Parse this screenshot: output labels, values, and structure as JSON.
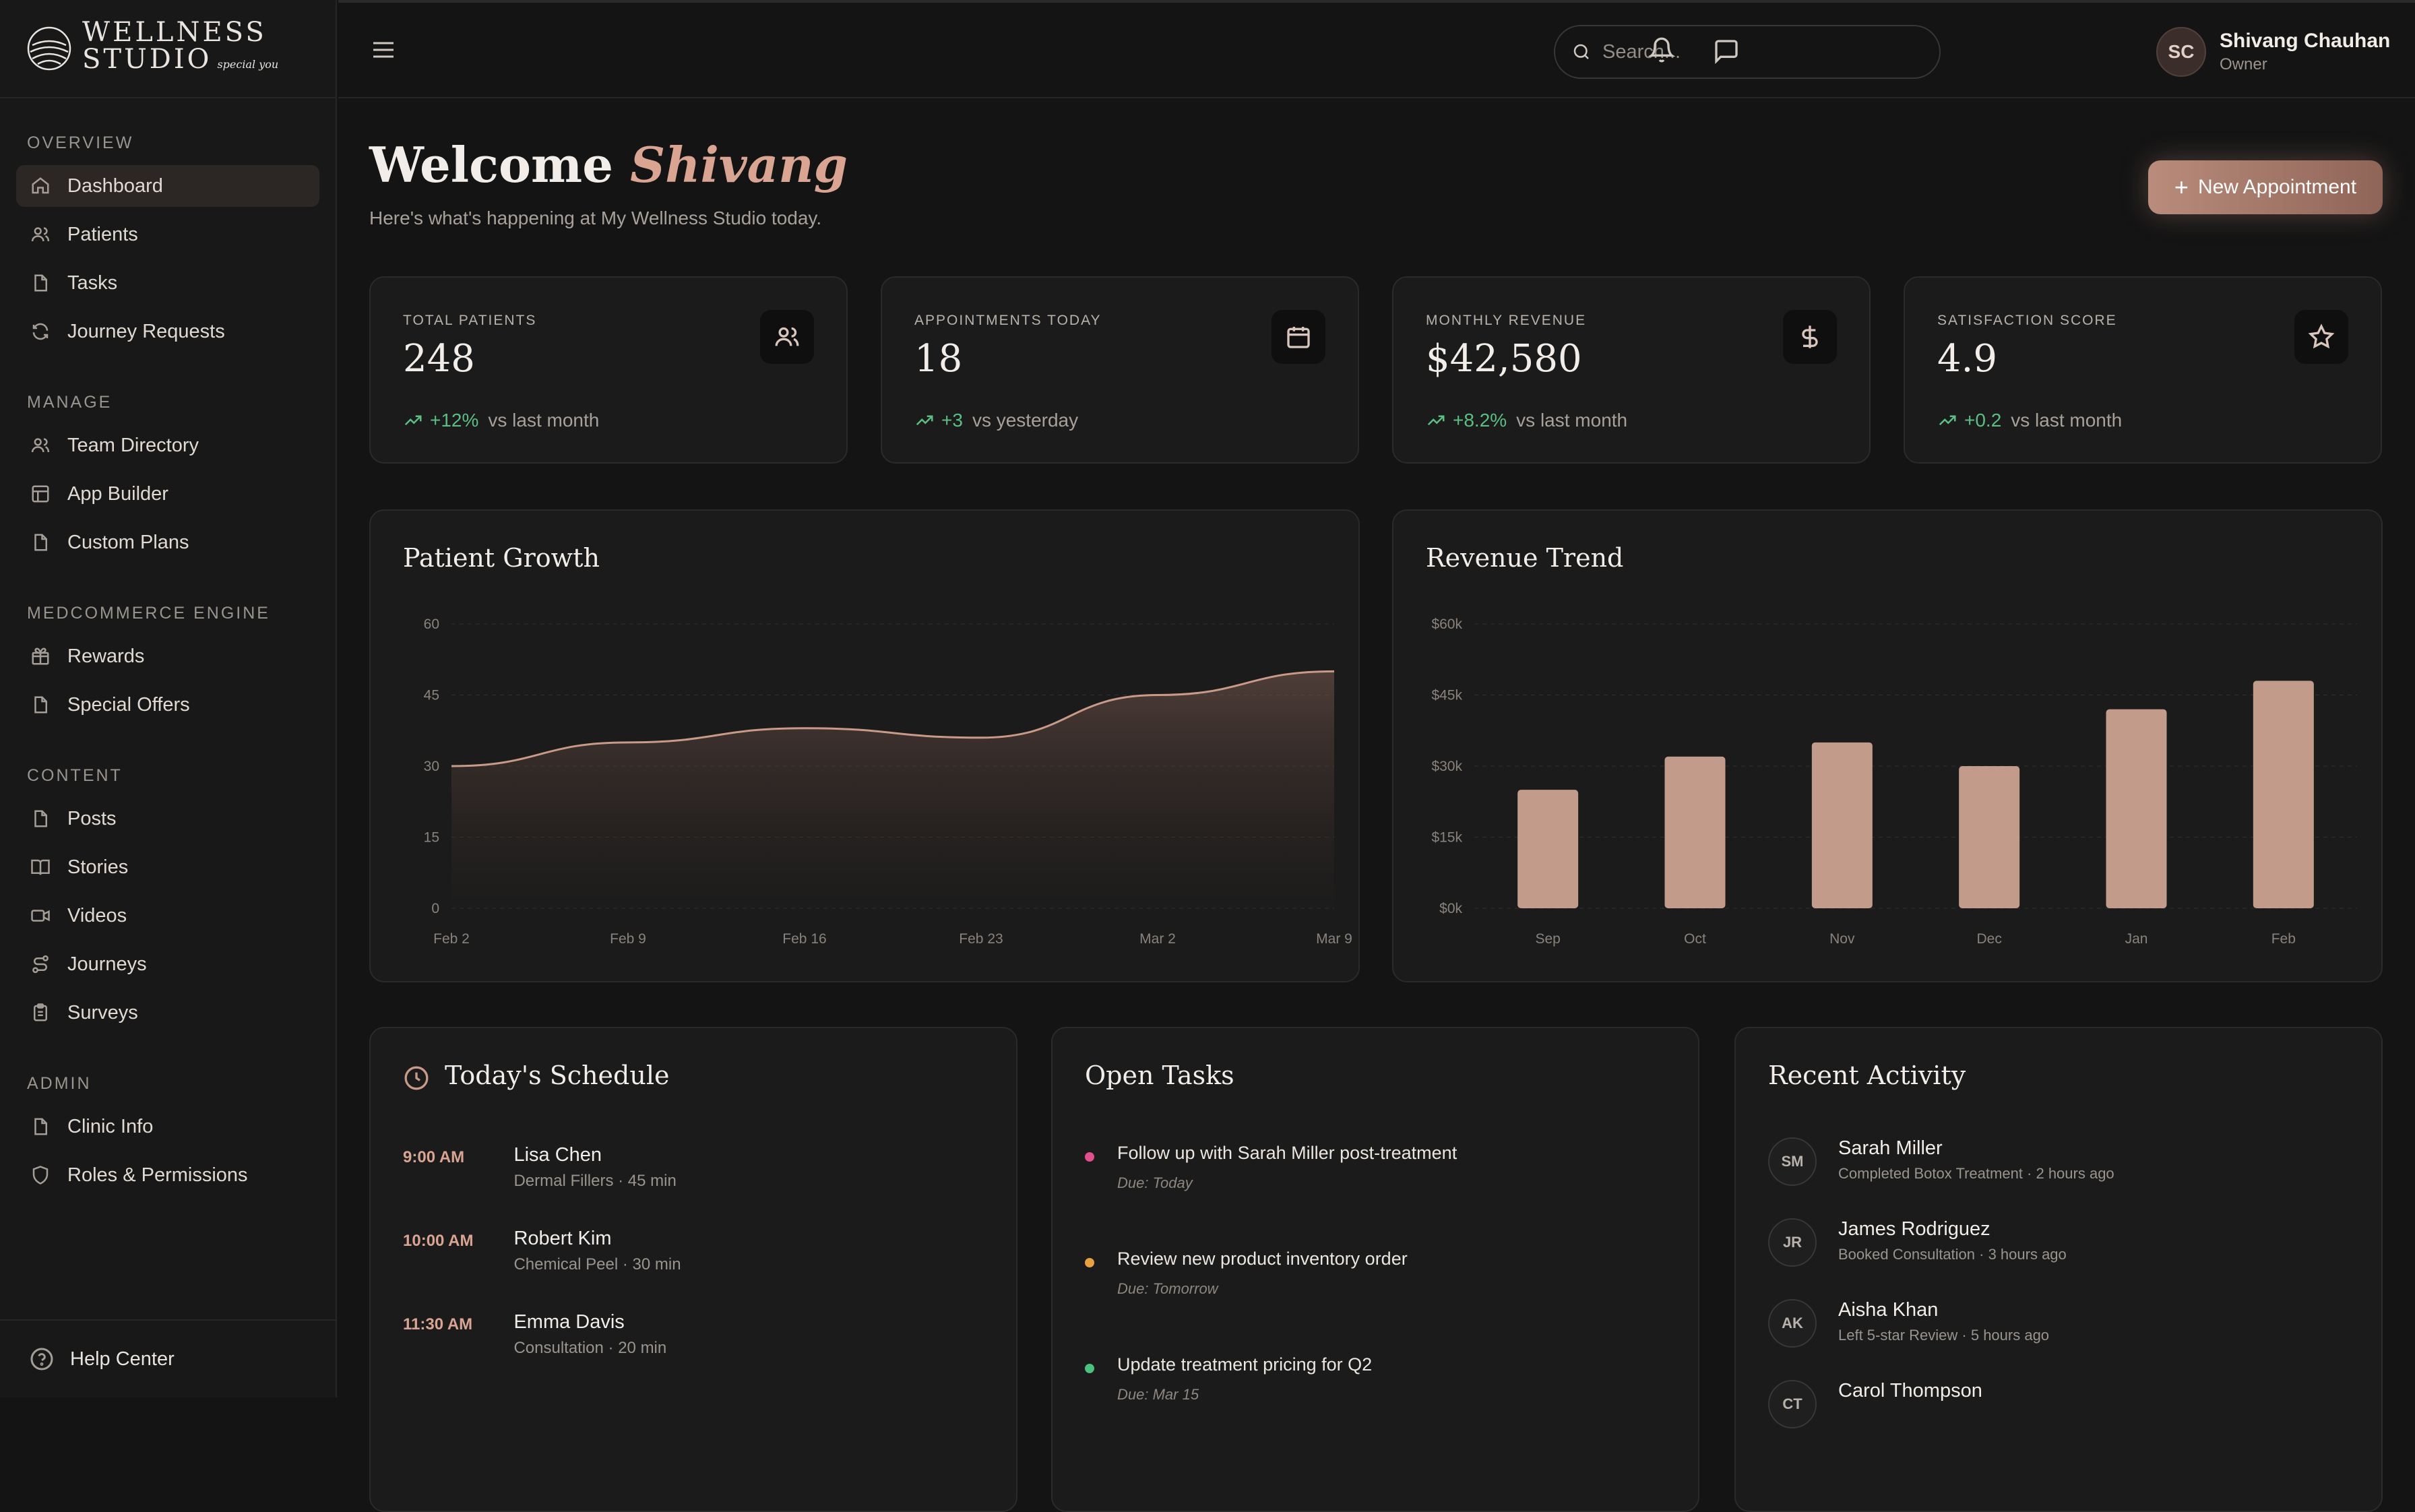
{
  "brand": {
    "line1": "WELLNESS",
    "line2": "STUDIO",
    "tagline": "special you"
  },
  "sidebar": {
    "sections": [
      {
        "heading": "OVERVIEW",
        "items": [
          {
            "label": "Dashboard",
            "icon": "home-icon",
            "active": true
          },
          {
            "label": "Patients",
            "icon": "users-icon"
          },
          {
            "label": "Tasks",
            "icon": "file-icon"
          },
          {
            "label": "Journey Requests",
            "icon": "refresh-icon"
          }
        ]
      },
      {
        "heading": "MANAGE",
        "items": [
          {
            "label": "Team Directory",
            "icon": "users-icon"
          },
          {
            "label": "App Builder",
            "icon": "layout-icon"
          },
          {
            "label": "Custom Plans",
            "icon": "file-icon"
          }
        ]
      },
      {
        "heading": "MEDCOMMERCE ENGINE",
        "items": [
          {
            "label": "Rewards",
            "icon": "gift-icon"
          },
          {
            "label": "Special Offers",
            "icon": "file-icon"
          }
        ]
      },
      {
        "heading": "CONTENT",
        "items": [
          {
            "label": "Posts",
            "icon": "file-icon"
          },
          {
            "label": "Stories",
            "icon": "book-icon"
          },
          {
            "label": "Videos",
            "icon": "video-icon"
          },
          {
            "label": "Journeys",
            "icon": "route-icon"
          },
          {
            "label": "Surveys",
            "icon": "clipboard-icon"
          }
        ]
      },
      {
        "heading": "ADMIN",
        "items": [
          {
            "label": "Clinic Info",
            "icon": "file-icon"
          },
          {
            "label": "Roles & Permissions",
            "icon": "shield-icon"
          }
        ]
      }
    ],
    "help": "Help Center"
  },
  "topbar": {
    "search_placeholder": "Search...",
    "user": {
      "initials": "SC",
      "name": "Shivang Chauhan",
      "role": "Owner"
    }
  },
  "header": {
    "welcome": "Welcome",
    "name": "Shivang",
    "subtitle": "Here's what's happening at My Wellness Studio today.",
    "new_button": "New Appointment"
  },
  "stats": [
    {
      "label": "TOTAL PATIENTS",
      "value": "248",
      "delta": "+12%",
      "compare": "vs last month",
      "icon": "users-icon"
    },
    {
      "label": "APPOINTMENTS TODAY",
      "value": "18",
      "delta": "+3",
      "compare": "vs yesterday",
      "icon": "calendar-icon"
    },
    {
      "label": "MONTHLY REVENUE",
      "value": "$42,580",
      "delta": "+8.2%",
      "compare": "vs last month",
      "icon": "dollar-icon"
    },
    {
      "label": "SATISFACTION SCORE",
      "value": "4.9",
      "delta": "+0.2",
      "compare": "vs last month",
      "icon": "star-icon"
    }
  ],
  "chart_data": [
    {
      "type": "area",
      "title": "Patient Growth",
      "x": [
        "Feb 2",
        "Feb 9",
        "Feb 16",
        "Feb 23",
        "Mar 2",
        "Mar 9"
      ],
      "yticks": [
        "0",
        "15",
        "30",
        "45",
        "60"
      ],
      "ylim": [
        0,
        60
      ],
      "series": [
        {
          "values": [
            30,
            35,
            38,
            36,
            45,
            50
          ]
        }
      ],
      "color": "#c99a88",
      "grid": true
    },
    {
      "type": "bar",
      "title": "Revenue Trend",
      "categories": [
        "Sep",
        "Oct",
        "Nov",
        "Dec",
        "Jan",
        "Feb"
      ],
      "yticks": [
        "$0k",
        "$15k",
        "$30k",
        "$45k",
        "$60k"
      ],
      "ylim": [
        0,
        60
      ],
      "values": [
        25,
        32,
        35,
        30,
        42,
        48
      ],
      "color": "#c39b8b",
      "grid": true
    }
  ],
  "schedule": {
    "title": "Today's Schedule",
    "items": [
      {
        "time": "9:00 AM",
        "name": "Lisa Chen",
        "detail": "Dermal Fillers · 45 min"
      },
      {
        "time": "10:00 AM",
        "name": "Robert Kim",
        "detail": "Chemical Peel · 30 min"
      },
      {
        "time": "11:30 AM",
        "name": "Emma Davis",
        "detail": "Consultation · 20 min"
      }
    ]
  },
  "tasks": {
    "title": "Open Tasks",
    "items": [
      {
        "title": "Follow up with Sarah Miller post-treatment",
        "due": "Due: Today",
        "color": "#e0508c"
      },
      {
        "title": "Review new product inventory order",
        "due": "Due: Tomorrow",
        "color": "#e8a040"
      },
      {
        "title": "Update treatment pricing for Q2",
        "due": "Due: Mar 15",
        "color": "#4fbf7f"
      }
    ]
  },
  "activity": {
    "title": "Recent Activity",
    "items": [
      {
        "initials": "SM",
        "name": "Sarah Miller",
        "detail": "Completed Botox Treatment · 2 hours ago"
      },
      {
        "initials": "JR",
        "name": "James Rodriguez",
        "detail": "Booked Consultation · 3 hours ago"
      },
      {
        "initials": "AK",
        "name": "Aisha Khan",
        "detail": "Left 5-star Review · 5 hours ago"
      },
      {
        "initials": "CT",
        "name": "Carol Thompson",
        "detail": ""
      }
    ]
  }
}
